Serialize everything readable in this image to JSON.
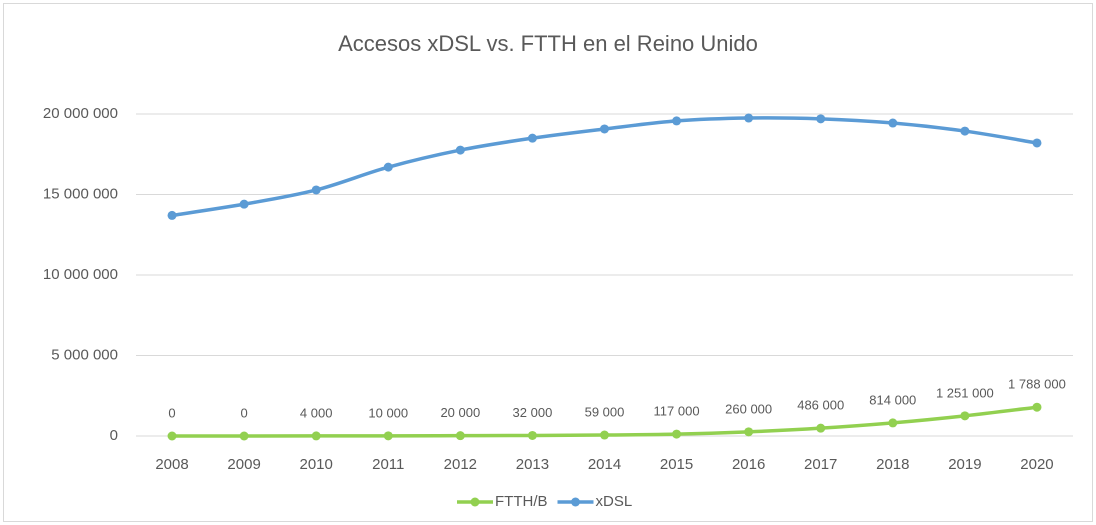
{
  "chart_data": {
    "type": "line",
    "title": "Accesos xDSL vs. FTTH en el Reino Unido",
    "categories": [
      "2008",
      "2009",
      "2010",
      "2011",
      "2012",
      "2013",
      "2014",
      "2015",
      "2016",
      "2017",
      "2018",
      "2019",
      "2020"
    ],
    "series": [
      {
        "name": "FTTH/B",
        "color": "#92d050",
        "values": [
          0,
          0,
          4000,
          10000,
          20000,
          32000,
          59000,
          117000,
          260000,
          486000,
          814000,
          1251000,
          1788000
        ],
        "value_labels": [
          "0",
          "0",
          "4 000",
          "10 000",
          "20 000",
          "32 000",
          "59 000",
          "117 000",
          "260 000",
          "486 000",
          "814 000",
          "1 251 000",
          "1 788 000"
        ]
      },
      {
        "name": "xDSL",
        "color": "#5b9bd5",
        "values": [
          13700000,
          14400000,
          15280000,
          16700000,
          17760000,
          18500000,
          19070000,
          19570000,
          19750000,
          19700000,
          19440000,
          18940000,
          18200000
        ]
      }
    ],
    "ylim": [
      0,
      20000000
    ],
    "yticks": [
      0,
      {
        "value": 5000000,
        "label": "5 000 000"
      },
      {
        "value": 10000000,
        "label": "10 000 000"
      },
      {
        "value": 15000000,
        "label": "15 000 000"
      },
      {
        "value": 20000000,
        "label": "20 000 000"
      }
    ],
    "grid": true,
    "legend": "bottom"
  }
}
